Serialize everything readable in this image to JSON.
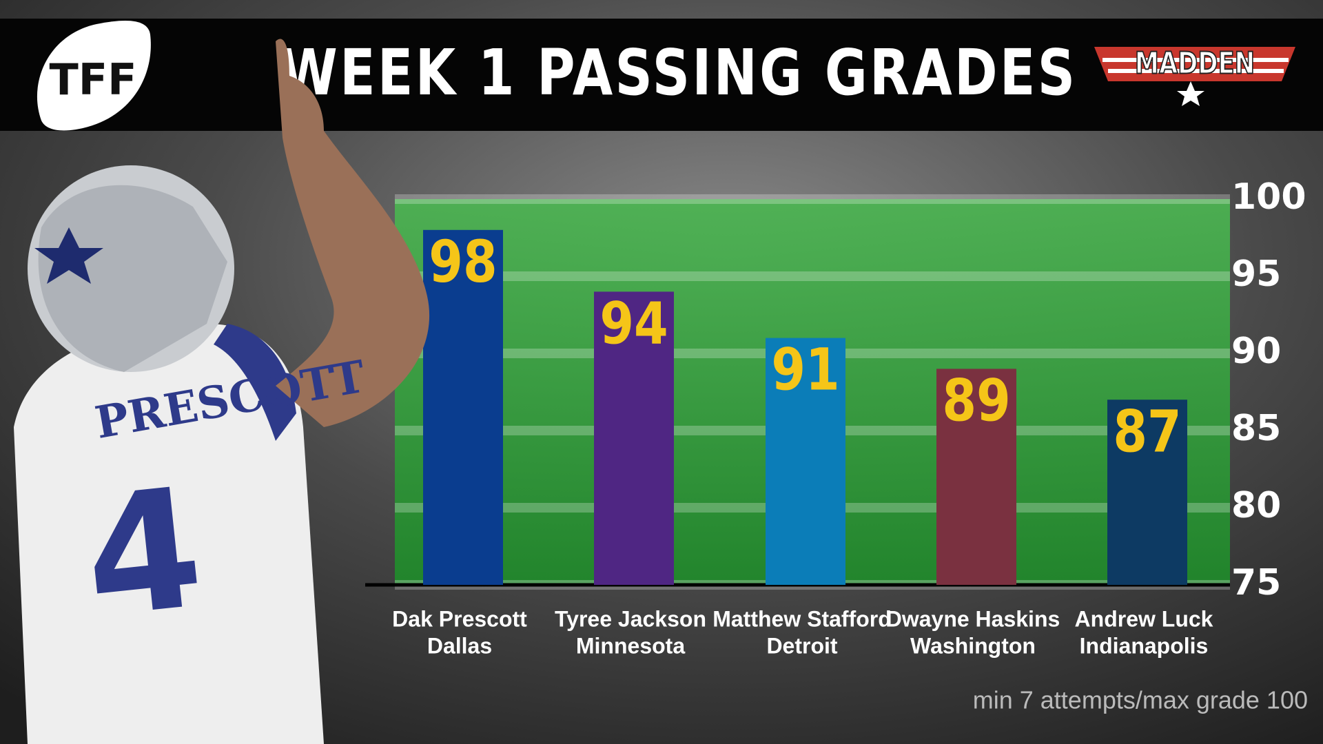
{
  "logo_left": "TFF",
  "logo_right": "MADDEN",
  "photo": {
    "jersey_name": "PRESCOTT",
    "jersey_number": "4"
  },
  "chart_data": {
    "type": "bar",
    "title": "WEEK 1 PASSING GRADES",
    "categories": [
      "Dak Prescott",
      "Tyree Jackson",
      "Matthew Stafford",
      "Dwayne Haskins",
      "Andrew Luck"
    ],
    "teams": [
      "Dallas",
      "Minnesota",
      "Detroit",
      "Washington",
      "Indianapolis"
    ],
    "values": [
      98,
      94,
      91,
      89,
      87
    ],
    "colors": [
      "#0a3d8f",
      "#4f2683",
      "#0b7db8",
      "#7a3140",
      "#0d3a63"
    ],
    "ylim": [
      75,
      100
    ],
    "yticks": [
      75,
      80,
      85,
      90,
      95,
      100
    ],
    "grid": true,
    "note": "min 7 attempts/max grade 100"
  }
}
